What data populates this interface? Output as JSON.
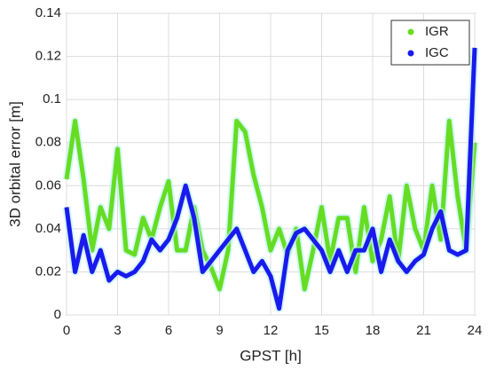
{
  "chart_data": {
    "type": "line",
    "xlabel": "GPST [h]",
    "ylabel": "3D orbital error [m]",
    "x": [
      0,
      0.5,
      1,
      1.5,
      2,
      2.5,
      3,
      3.5,
      4,
      4.5,
      5,
      5.5,
      6,
      6.5,
      7,
      7.5,
      8,
      8.5,
      9,
      9.5,
      10,
      10.5,
      11,
      11.5,
      12,
      12.5,
      13,
      13.5,
      14,
      14.5,
      15,
      15.5,
      16,
      16.5,
      17,
      17.5,
      18,
      18.5,
      19,
      19.5,
      20,
      20.5,
      21,
      21.5,
      22,
      22.5,
      23,
      23.5,
      24
    ],
    "series": [
      {
        "name": "IGR",
        "color": "#66dd22",
        "values": [
          0.063,
          0.09,
          0.063,
          0.03,
          0.05,
          0.04,
          0.077,
          0.03,
          0.028,
          0.045,
          0.035,
          0.05,
          0.062,
          0.03,
          0.03,
          0.05,
          0.03,
          0.022,
          0.012,
          0.03,
          0.09,
          0.085,
          0.065,
          0.05,
          0.03,
          0.04,
          0.028,
          0.04,
          0.012,
          0.03,
          0.05,
          0.025,
          0.045,
          0.045,
          0.02,
          0.05,
          0.025,
          0.035,
          0.055,
          0.025,
          0.06,
          0.04,
          0.03,
          0.06,
          0.035,
          0.09,
          0.055,
          0.03,
          0.08
        ]
      },
      {
        "name": "IGC",
        "color": "#1a1aee",
        "values": [
          0.05,
          0.02,
          0.037,
          0.02,
          0.03,
          0.016,
          0.02,
          0.018,
          0.02,
          0.025,
          0.035,
          0.03,
          0.035,
          0.045,
          0.06,
          0.045,
          0.02,
          0.025,
          0.03,
          0.035,
          0.04,
          0.03,
          0.02,
          0.025,
          0.018,
          0.003,
          0.03,
          0.038,
          0.04,
          0.035,
          0.03,
          0.02,
          0.03,
          0.02,
          0.03,
          0.03,
          0.04,
          0.02,
          0.035,
          0.025,
          0.02,
          0.025,
          0.028,
          0.04,
          0.048,
          0.03,
          0.028,
          0.03,
          0.124
        ]
      }
    ],
    "xlim": [
      0,
      24
    ],
    "xticks": [
      0,
      3,
      6,
      9,
      12,
      15,
      18,
      21,
      24
    ],
    "ylim": [
      0,
      0.14
    ],
    "yticks": [
      0,
      0.02,
      0.04,
      0.06,
      0.08,
      0.1,
      0.12,
      0.14
    ],
    "grid": true,
    "legend": "upper right"
  }
}
